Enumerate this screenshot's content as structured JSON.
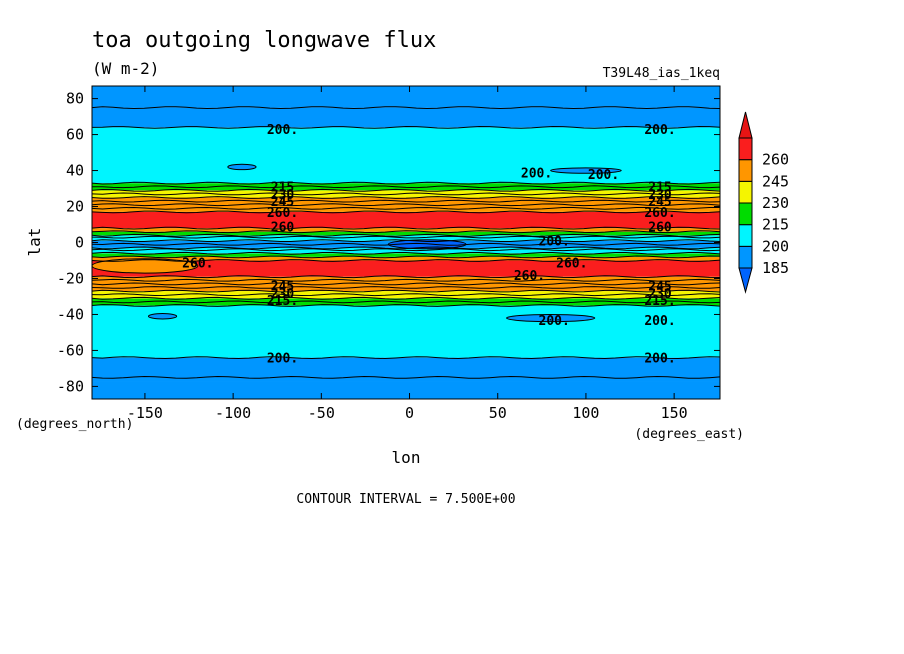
{
  "chart_data": {
    "type": "contour",
    "title": "toa outgoing longwave flux",
    "units": "(W m-2)",
    "run_label": "T39L48_ias_1keq",
    "xlabel": "lon",
    "ylabel": "lat",
    "x_units": "(degrees_east)",
    "y_units": "(degrees_north)",
    "xlim": [
      -180,
      176
    ],
    "ylim": [
      -87,
      87
    ],
    "xticks": [
      -150,
      -100,
      -50,
      0,
      50,
      100,
      150
    ],
    "yticks": [
      -80,
      -60,
      -40,
      -20,
      0,
      20,
      40,
      60,
      80
    ],
    "xtick_labels": [
      "-150",
      "-100",
      "-50",
      "0",
      "50",
      "100",
      "150"
    ],
    "ytick_labels": [
      "-80",
      "-60",
      "-40",
      "-20",
      "0",
      "20",
      "40",
      "60",
      "80"
    ],
    "contour_interval_text": "CONTOUR INTERVAL = 7.500E+00",
    "colorbar": {
      "levels": [
        185,
        200,
        215,
        230,
        245,
        260
      ],
      "labels": [
        "185",
        "200",
        "215",
        "230",
        "245",
        "260"
      ],
      "colors": [
        "#0096ff",
        "#00f5ff",
        "#00dc00",
        "#f5f500",
        "#ff9600",
        "#fa1e1e"
      ],
      "extend": "both",
      "low_color": "#0064ff",
      "high_color": "#e61414"
    },
    "bands": [
      {
        "lat_min": -87,
        "lat_max": -77,
        "color": "#0096ff"
      },
      {
        "lat_min": -77,
        "lat_max": -64,
        "color": "#0096ff"
      },
      {
        "lat_min": -64,
        "lat_max": -35,
        "color": "#00f5ff"
      },
      {
        "lat_min": -35,
        "lat_max": -31,
        "color": "#00dc00"
      },
      {
        "lat_min": -31,
        "lat_max": -27,
        "color": "#f5f500"
      },
      {
        "lat_min": -27,
        "lat_max": -19,
        "color": "#ff9600"
      },
      {
        "lat_min": -19,
        "lat_max": -10,
        "color": "#fa1e1e"
      },
      {
        "lat_min": -10,
        "lat_max": -8,
        "color": "#ff9600"
      },
      {
        "lat_min": -8,
        "lat_max": -6,
        "color": "#00dc00"
      },
      {
        "lat_min": -6,
        "lat_max": -3,
        "color": "#00f5ff"
      },
      {
        "lat_min": -3,
        "lat_max": 1,
        "color": "#0096ff"
      },
      {
        "lat_min": 1,
        "lat_max": 4,
        "color": "#00f5ff"
      },
      {
        "lat_min": 4,
        "lat_max": 6,
        "color": "#00dc00"
      },
      {
        "lat_min": 6,
        "lat_max": 8,
        "color": "#ff9600"
      },
      {
        "lat_min": 8,
        "lat_max": 17,
        "color": "#fa1e1e"
      },
      {
        "lat_min": 17,
        "lat_max": 25,
        "color": "#ff9600"
      },
      {
        "lat_min": 25,
        "lat_max": 29,
        "color": "#f5f500"
      },
      {
        "lat_min": 29,
        "lat_max": 33,
        "color": "#00dc00"
      },
      {
        "lat_min": 33,
        "lat_max": 64,
        "color": "#00f5ff"
      },
      {
        "lat_min": 64,
        "lat_max": 75,
        "color": "#0096ff"
      },
      {
        "lat_min": 75,
        "lat_max": 87,
        "color": "#0096ff"
      }
    ],
    "patches": [
      {
        "lon": -150,
        "lat": -13,
        "rx": 30,
        "ry": 4,
        "color": "#ff9600"
      },
      {
        "lon": 10,
        "lat": -1,
        "rx": 22,
        "ry": 2.5,
        "color": "#0064ff"
      },
      {
        "lon": -95,
        "lat": 42,
        "rx": 8,
        "ry": 1.5,
        "color": "#0096ff"
      },
      {
        "lon": 100,
        "lat": 40,
        "rx": 20,
        "ry": 1.5,
        "color": "#0096ff"
      },
      {
        "lon": 80,
        "lat": -42,
        "rx": 25,
        "ry": 2,
        "color": "#0096ff"
      },
      {
        "lon": -140,
        "lat": -41,
        "rx": 8,
        "ry": 1.5,
        "color": "#0096ff"
      }
    ],
    "contour_lats": [
      -75,
      -64,
      -35,
      -33,
      -31,
      -29,
      -27,
      -25,
      -23,
      -21,
      -19,
      -10,
      -8,
      -6,
      -4,
      -3,
      -1,
      1,
      3,
      4,
      6,
      8,
      17,
      19,
      21,
      23,
      25,
      27,
      29,
      31,
      33,
      64,
      75
    ],
    "contour_labels": [
      {
        "text": "200.",
        "lon": -72,
        "lat": 63
      },
      {
        "text": "200.",
        "lon": 142,
        "lat": 63
      },
      {
        "text": "200.",
        "lon": 72,
        "lat": 39
      },
      {
        "text": "200.",
        "lon": 110,
        "lat": 38
      },
      {
        "text": "215",
        "lon": -72,
        "lat": 31
      },
      {
        "text": "230",
        "lon": -72,
        "lat": 27
      },
      {
        "text": "245",
        "lon": -72,
        "lat": 23
      },
      {
        "text": "260.",
        "lon": -72,
        "lat": 17
      },
      {
        "text": "215",
        "lon": 142,
        "lat": 31
      },
      {
        "text": "230",
        "lon": 142,
        "lat": 27
      },
      {
        "text": "245",
        "lon": 142,
        "lat": 23
      },
      {
        "text": "260.",
        "lon": 142,
        "lat": 17
      },
      {
        "text": "260",
        "lon": -72,
        "lat": 9
      },
      {
        "text": "260",
        "lon": 142,
        "lat": 9
      },
      {
        "text": "200.",
        "lon": 82,
        "lat": 1
      },
      {
        "text": "260.",
        "lon": -120,
        "lat": -11
      },
      {
        "text": "260.",
        "lon": 68,
        "lat": -18
      },
      {
        "text": "260.",
        "lon": 92,
        "lat": -11
      },
      {
        "text": "245",
        "lon": -72,
        "lat": -24
      },
      {
        "text": "230",
        "lon": -72,
        "lat": -28
      },
      {
        "text": "215.",
        "lon": -72,
        "lat": -32
      },
      {
        "text": "245",
        "lon": 142,
        "lat": -24
      },
      {
        "text": "230",
        "lon": 142,
        "lat": -28
      },
      {
        "text": "215.",
        "lon": 142,
        "lat": -32
      },
      {
        "text": "200.",
        "lon": 82,
        "lat": -43
      },
      {
        "text": "200.",
        "lon": 142,
        "lat": -43
      },
      {
        "text": "200.",
        "lon": -72,
        "lat": -64
      },
      {
        "text": "200.",
        "lon": 142,
        "lat": -64
      }
    ]
  }
}
